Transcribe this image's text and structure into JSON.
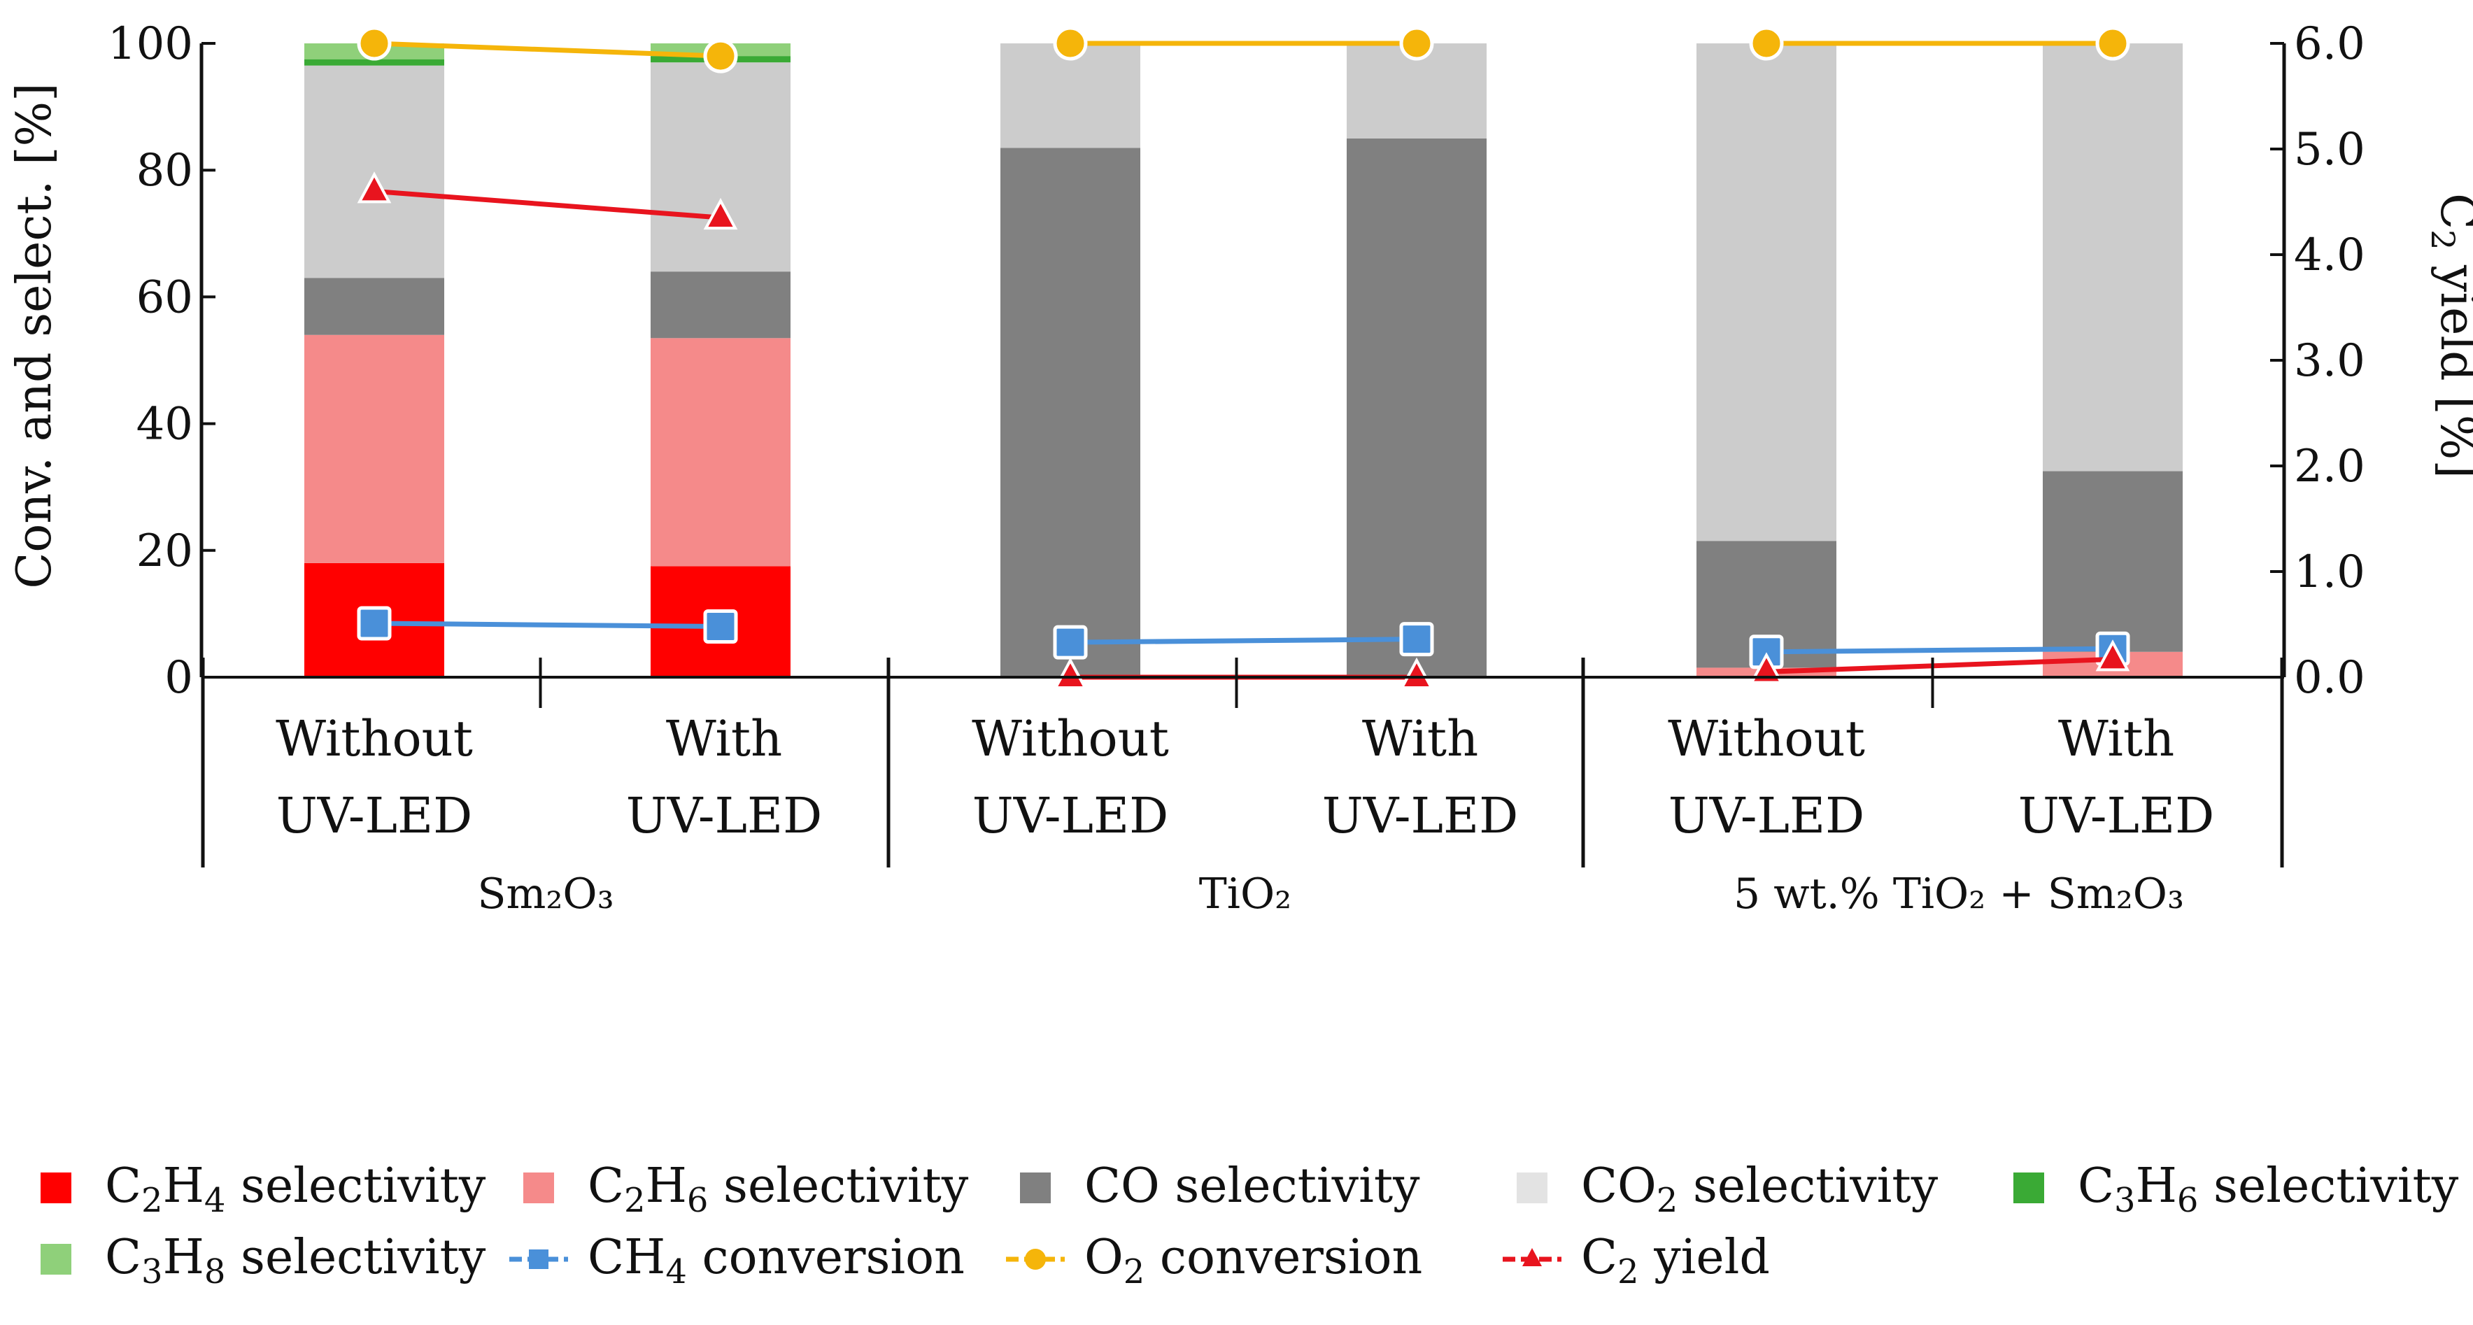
{
  "chart_data": {
    "type": "bar",
    "subtype": "stacked-bar-with-lines",
    "y_left": {
      "label": "Conv. and select. [%]",
      "range": [
        0,
        100
      ],
      "ticks": [
        "0",
        "20",
        "40",
        "60",
        "80",
        "100"
      ]
    },
    "y_right": {
      "label_main": "C",
      "label_sub": "2",
      "label_rest": " yield [%]",
      "range": [
        0,
        6
      ],
      "ticks": [
        "0.0",
        "1.0",
        "2.0",
        "3.0",
        "4.0",
        "5.0",
        "6.0"
      ]
    },
    "categories": [
      {
        "line1": "Without",
        "line2": "UV-LED"
      },
      {
        "line1": "With",
        "line2": "UV-LED"
      },
      {
        "line1": "Without",
        "line2": "UV-LED"
      },
      {
        "line1": "With",
        "line2": "UV-LED"
      },
      {
        "line1": "Without",
        "line2": "UV-LED"
      },
      {
        "line1": "With",
        "line2": "UV-LED"
      }
    ],
    "groups": [
      {
        "label": "Sm₂O₃",
        "categories": [
          0,
          1
        ]
      },
      {
        "label": "TiO₂",
        "categories": [
          2,
          3
        ]
      },
      {
        "label": "5 wt.% TiO₂ + Sm₂O₃",
        "categories": [
          4,
          5
        ]
      }
    ],
    "stacked_series": [
      {
        "name": "C2H4 selectivity",
        "color": "#ff0000",
        "values": [
          18,
          17.5,
          0,
          0,
          0,
          0
        ]
      },
      {
        "name": "C2H6 selectivity",
        "color": "#f58a8a",
        "values": [
          36,
          36,
          0,
          0,
          1.5,
          4
        ]
      },
      {
        "name": "CO selectivity",
        "color": "#808080",
        "values": [
          9,
          10.5,
          83.5,
          85,
          20,
          28.5
        ]
      },
      {
        "name": "CO2 selectivity",
        "color": "#cccccc",
        "values": [
          33.5,
          33,
          16.5,
          15,
          78.5,
          67.5
        ]
      },
      {
        "name": "C3H6 selectivity",
        "color": "#3aaa35",
        "values": [
          1,
          1,
          0,
          0,
          0,
          0
        ]
      },
      {
        "name": "C3H8 selectivity",
        "color": "#8fd07a",
        "values": [
          2.5,
          2,
          0,
          0,
          0,
          0
        ]
      }
    ],
    "line_series": [
      {
        "name": "CH4 conversion",
        "axis": "left",
        "color": "#4a90d9",
        "marker": "square",
        "segments": [
          [
            0,
            1
          ],
          [
            2,
            3
          ],
          [
            4,
            5
          ]
        ],
        "values": [
          8.5,
          8,
          5.5,
          6,
          4,
          4.5
        ]
      },
      {
        "name": "O2 conversion",
        "axis": "left",
        "color": "#f5b50a",
        "marker": "circle",
        "segments": [
          [
            0,
            1
          ],
          [
            2,
            3
          ],
          [
            4,
            5
          ]
        ],
        "values": [
          100,
          98,
          100,
          100,
          100,
          100
        ]
      },
      {
        "name": "C2 yield",
        "axis": "right",
        "color": "#e8141e",
        "marker": "triangle",
        "segments": [
          [
            0,
            1
          ],
          [
            2,
            3
          ],
          [
            4,
            5
          ]
        ],
        "values": [
          4.6,
          4.35,
          0.0,
          0.0,
          0.05,
          0.17
        ]
      }
    ]
  },
  "legend": [
    {
      "main": "C",
      "sub1": "2",
      "mid": "H",
      "sub2": "4",
      "rest": " selectivity",
      "type": "box",
      "color": "#ff0000"
    },
    {
      "main": "C",
      "sub1": "2",
      "mid": "H",
      "sub2": "6",
      "rest": " selectivity",
      "type": "box",
      "color": "#f58a8a"
    },
    {
      "main": "CO",
      "sub1": "",
      "mid": "",
      "sub2": "",
      "rest": " selectivity",
      "type": "box",
      "color": "#808080"
    },
    {
      "main": "CO",
      "sub1": "2",
      "mid": "",
      "sub2": "",
      "rest": " selectivity",
      "type": "box",
      "color": "#e3e3e3"
    },
    {
      "main": "C",
      "sub1": "3",
      "mid": "H",
      "sub2": "6",
      "rest": " selectivity",
      "type": "box",
      "color": "#3aaa35"
    },
    {
      "main": "C",
      "sub1": "3",
      "mid": "H",
      "sub2": "8",
      "rest": " selectivity",
      "type": "box",
      "color": "#8fd07a"
    },
    {
      "main": "CH",
      "sub1": "4",
      "mid": "",
      "sub2": "",
      "rest": " conversion",
      "type": "square",
      "color": "#4a90d9"
    },
    {
      "main": "O",
      "sub1": "2",
      "mid": "",
      "sub2": "",
      "rest": " conversion",
      "type": "circle",
      "color": "#f5b50a"
    },
    {
      "main": "C",
      "sub1": "2",
      "mid": "",
      "sub2": "",
      "rest": " yield",
      "type": "triangle",
      "color": "#e8141e"
    }
  ]
}
